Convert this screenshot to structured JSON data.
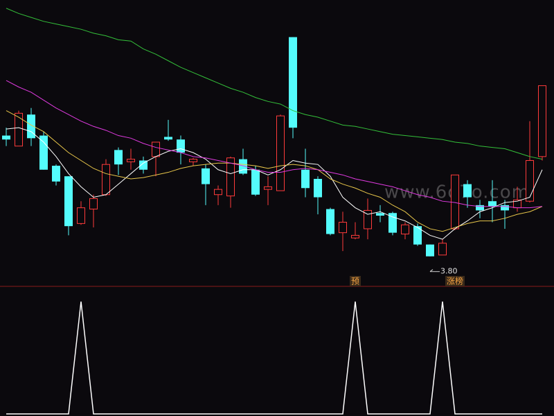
{
  "watermark": "www.6o7o.com",
  "chart_data": [
    {
      "type": "candlestick",
      "up_color": "#ff3b3b",
      "down_color": "#54fcfc",
      "ylim": [
        3.64,
        5.7
      ],
      "open": [
        4.72,
        4.64,
        4.88,
        4.72,
        4.49,
        4.41,
        4.05,
        4.16,
        4.27,
        4.61,
        4.52,
        4.53,
        4.56,
        4.71,
        4.69,
        4.52,
        4.47,
        4.27,
        4.26,
        4.54,
        4.46,
        4.31,
        4.3,
        5.47,
        4.46,
        4.39,
        4.16,
        3.98,
        3.94,
        4.01,
        4.13,
        4.13,
        3.97,
        4.03,
        3.89,
        3.81,
        4.01,
        4.35,
        4.19,
        4.22,
        4.19,
        4.17,
        4.22,
        4.56
      ],
      "high": [
        4.78,
        4.91,
        4.93,
        4.75,
        4.5,
        4.41,
        4.22,
        4.27,
        4.54,
        4.63,
        4.62,
        4.56,
        4.67,
        4.84,
        4.72,
        4.55,
        4.5,
        4.34,
        4.56,
        4.62,
        4.49,
        4.41,
        4.88,
        5.47,
        4.62,
        4.41,
        4.17,
        4.14,
        4.06,
        4.24,
        4.19,
        4.14,
        4.06,
        4.05,
        3.89,
        3.93,
        4.42,
        4.38,
        4.23,
        4.38,
        4.23,
        4.33,
        4.83,
        5.1
      ],
      "low": [
        4.64,
        4.64,
        4.64,
        4.46,
        4.34,
        3.96,
        4.04,
        4.02,
        4.26,
        4.42,
        4.46,
        4.43,
        4.41,
        4.68,
        4.5,
        4.49,
        4.19,
        4.19,
        4.17,
        4.42,
        4.26,
        4.19,
        4.3,
        4.7,
        4.25,
        4.12,
        3.96,
        3.84,
        3.93,
        3.93,
        4.06,
        3.96,
        3.93,
        3.88,
        3.8,
        3.82,
        4.0,
        4.17,
        4.09,
        4.06,
        4.01,
        4.14,
        4.21,
        4.53
      ],
      "close": [
        4.69,
        4.89,
        4.7,
        4.46,
        4.37,
        4.03,
        4.17,
        4.24,
        4.5,
        4.5,
        4.54,
        4.46,
        4.67,
        4.69,
        4.59,
        4.54,
        4.35,
        4.31,
        4.55,
        4.43,
        4.27,
        4.33,
        4.87,
        4.78,
        4.32,
        4.25,
        3.97,
        4.06,
        3.96,
        4.15,
        4.11,
        3.98,
        4.04,
        3.89,
        3.8,
        3.9,
        4.42,
        4.25,
        4.15,
        4.18,
        4.15,
        4.23,
        4.53,
        5.1
      ],
      "series": [
        {
          "color": "#ffffff",
          "values": [
            4.77,
            4.78,
            4.75,
            4.67,
            4.56,
            4.43,
            4.33,
            4.25,
            4.27,
            4.35,
            4.43,
            4.51,
            4.56,
            4.6,
            4.62,
            4.59,
            4.54,
            4.46,
            4.43,
            4.46,
            4.46,
            4.42,
            4.46,
            4.53,
            4.51,
            4.5,
            4.41,
            4.25,
            4.17,
            4.12,
            4.14,
            4.1,
            4.07,
            4.02,
            3.96,
            3.93,
            4.01,
            4.07,
            4.14,
            4.17,
            4.21,
            4.22,
            4.25,
            4.46
          ]
        },
        {
          "color": "#e8c64a",
          "values": [
            4.91,
            4.86,
            4.8,
            4.75,
            4.67,
            4.59,
            4.53,
            4.47,
            4.43,
            4.41,
            4.39,
            4.4,
            4.42,
            4.44,
            4.47,
            4.49,
            4.5,
            4.51,
            4.51,
            4.5,
            4.49,
            4.47,
            4.49,
            4.5,
            4.49,
            4.46,
            4.39,
            4.35,
            4.32,
            4.28,
            4.25,
            4.19,
            4.14,
            4.06,
            4.01,
            3.99,
            4.02,
            4.05,
            4.07,
            4.07,
            4.09,
            4.12,
            4.14,
            4.18
          ]
        },
        {
          "color": "#e03ae0",
          "values": [
            5.14,
            5.09,
            5.05,
            4.99,
            4.93,
            4.88,
            4.83,
            4.79,
            4.76,
            4.72,
            4.7,
            4.66,
            4.63,
            4.61,
            4.59,
            4.56,
            4.55,
            4.53,
            4.51,
            4.49,
            4.46,
            4.44,
            4.44,
            4.46,
            4.47,
            4.46,
            4.44,
            4.42,
            4.39,
            4.37,
            4.35,
            4.33,
            4.3,
            4.27,
            4.25,
            4.22,
            4.21,
            4.19,
            4.18,
            4.18,
            4.18,
            4.17,
            4.17,
            4.18
          ]
        },
        {
          "color": "#34c03a",
          "values": [
            5.69,
            5.65,
            5.62,
            5.59,
            5.57,
            5.55,
            5.53,
            5.5,
            5.48,
            5.45,
            5.44,
            5.38,
            5.34,
            5.29,
            5.24,
            5.2,
            5.16,
            5.12,
            5.08,
            5.05,
            5.01,
            4.98,
            4.96,
            4.91,
            4.88,
            4.86,
            4.83,
            4.8,
            4.79,
            4.77,
            4.75,
            4.73,
            4.72,
            4.71,
            4.7,
            4.69,
            4.67,
            4.66,
            4.64,
            4.63,
            4.62,
            4.59,
            4.56,
            4.54
          ]
        }
      ],
      "low_label": {
        "value": 3.8,
        "label": "3.80"
      },
      "signals": [
        null,
        null,
        null,
        null,
        null,
        null,
        null,
        null,
        null,
        null,
        null,
        null,
        null,
        null,
        null,
        null,
        null,
        null,
        null,
        null,
        null,
        null,
        null,
        null,
        null,
        null,
        null,
        null,
        "预",
        null,
        null,
        null,
        null,
        null,
        null,
        null,
        "涨榜",
        null,
        null,
        null,
        null,
        null,
        null,
        null
      ]
    },
    {
      "type": "line",
      "color": "#ffffff",
      "ylim": [
        0,
        1
      ],
      "values": [
        0,
        0,
        0,
        0,
        0,
        0,
        1,
        0,
        0,
        0,
        0,
        0,
        0,
        0,
        0,
        0,
        0,
        0,
        0,
        0,
        0,
        0,
        0,
        0,
        0,
        0,
        0,
        0,
        1,
        0,
        0,
        0,
        0,
        0,
        0,
        1,
        0,
        0,
        0,
        0,
        0,
        0,
        0,
        0
      ]
    }
  ]
}
